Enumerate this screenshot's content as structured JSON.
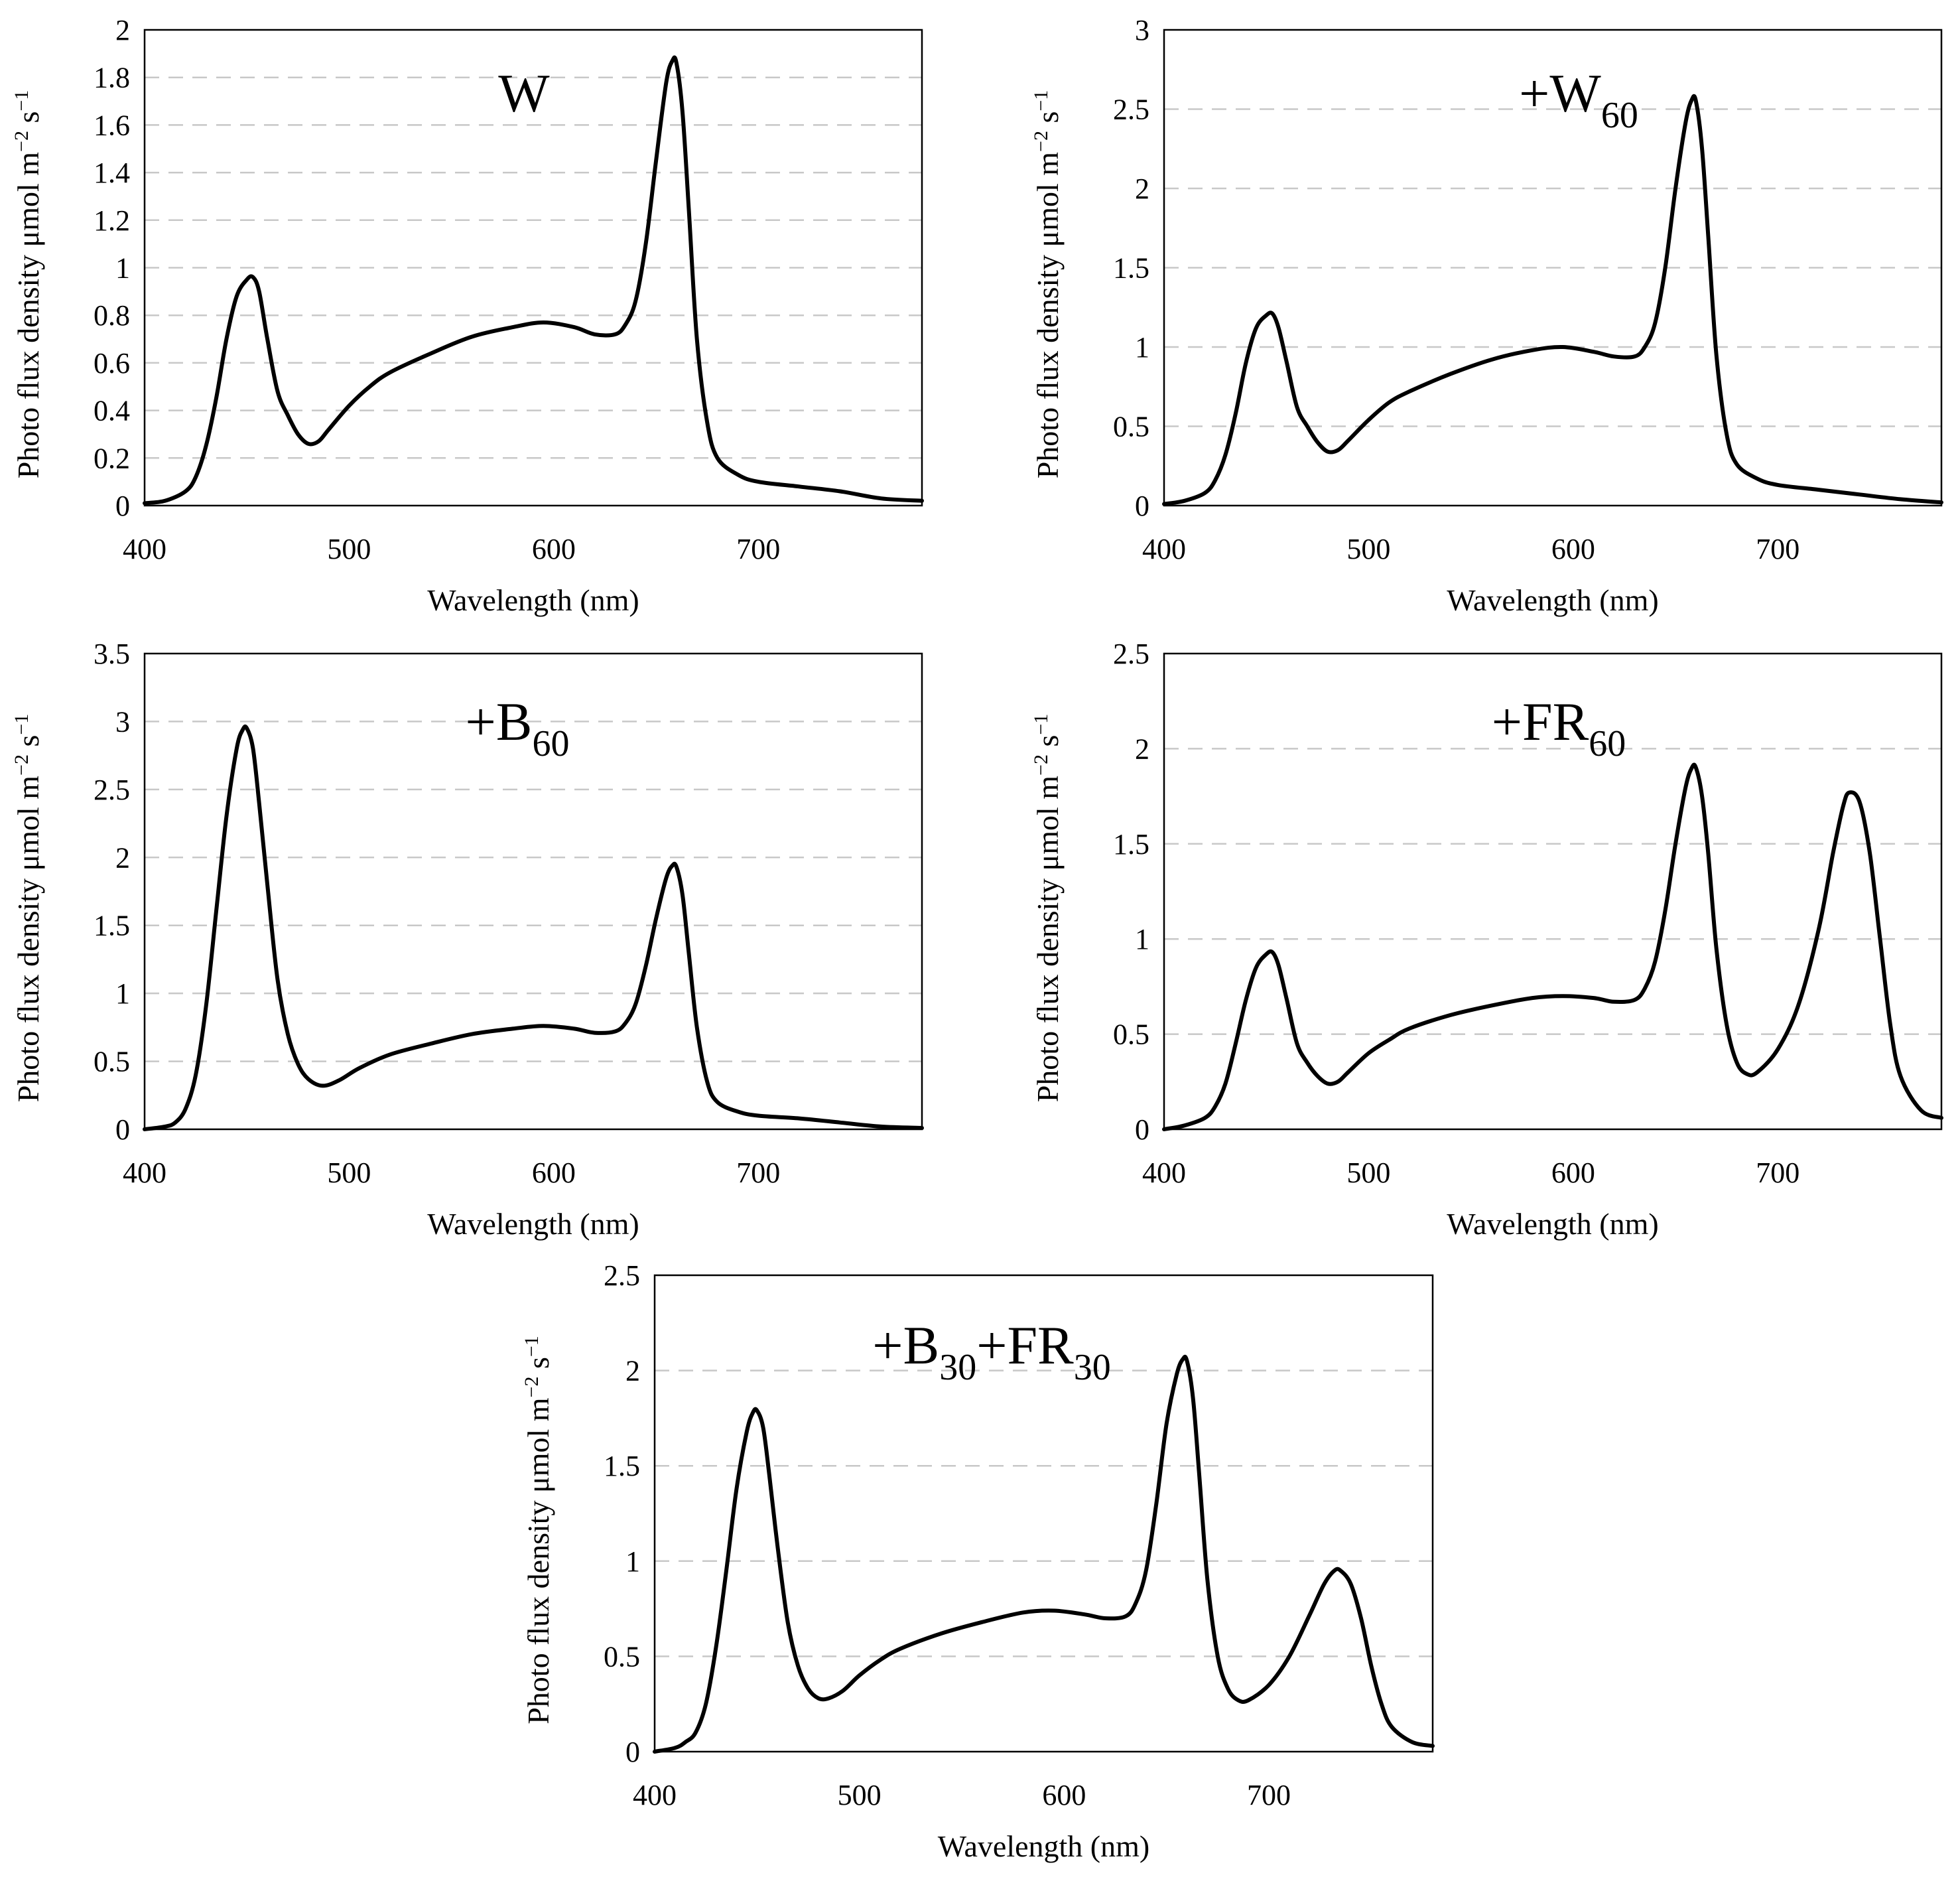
{
  "figure": {
    "xlabel": "Wavelength (nm)",
    "ylabel_base": "Photo flux density μmol m",
    "ylabel_exp1": "−2",
    "ylabel_mid": " s",
    "ylabel_exp2": "−1",
    "x_ticks": [
      "400",
      "500",
      "600",
      "700"
    ]
  },
  "chart_data": [
    {
      "type": "line",
      "title": "W",
      "title_parts": [
        {
          "text": "W",
          "sub": false
        }
      ],
      "xlabel": "Wavelength (nm)",
      "ylabel": "Photo flux density μmol m−2 s−1",
      "xlim": [
        400,
        780
      ],
      "ylim": [
        0,
        2
      ],
      "yticks": [
        0,
        0.2,
        0.4,
        0.6,
        0.8,
        1,
        1.2,
        1.4,
        1.6,
        1.8,
        2
      ],
      "ytick_labels": [
        "0",
        "0.2",
        "0.4",
        "0.6",
        "0.8",
        "1",
        "1.2",
        "1.4",
        "1.6",
        "1.8",
        "2"
      ],
      "grid": true,
      "x": [
        400,
        410,
        420,
        425,
        430,
        435,
        440,
        445,
        450,
        453,
        456,
        460,
        465,
        470,
        475,
        480,
        485,
        490,
        500,
        510,
        520,
        540,
        560,
        580,
        595,
        610,
        620,
        630,
        635,
        640,
        645,
        650,
        655,
        658,
        660,
        663,
        666,
        670,
        675,
        680,
        690,
        700,
        720,
        740,
        760,
        780
      ],
      "y": [
        0.01,
        0.02,
        0.06,
        0.12,
        0.25,
        0.45,
        0.7,
        0.88,
        0.95,
        0.96,
        0.9,
        0.7,
        0.48,
        0.38,
        0.3,
        0.26,
        0.27,
        0.32,
        0.42,
        0.5,
        0.56,
        0.64,
        0.71,
        0.75,
        0.77,
        0.75,
        0.72,
        0.72,
        0.76,
        0.86,
        1.1,
        1.45,
        1.78,
        1.87,
        1.86,
        1.65,
        1.25,
        0.7,
        0.35,
        0.2,
        0.13,
        0.1,
        0.08,
        0.06,
        0.03,
        0.02
      ]
    },
    {
      "type": "line",
      "title": "+W60",
      "title_parts": [
        {
          "text": "+W",
          "sub": false
        },
        {
          "text": "60",
          "sub": true
        }
      ],
      "xlabel": "Wavelength (nm)",
      "ylabel": "Photo flux density μmol m−2 s−1",
      "xlim": [
        400,
        780
      ],
      "ylim": [
        0,
        3
      ],
      "yticks": [
        0,
        0.5,
        1,
        1.5,
        2,
        2.5,
        3
      ],
      "ytick_labels": [
        "0",
        "0.5",
        "1",
        "1.5",
        "2",
        "2.5",
        "3"
      ],
      "grid": true,
      "x": [
        400,
        410,
        420,
        425,
        430,
        435,
        440,
        445,
        450,
        453,
        456,
        460,
        465,
        470,
        475,
        480,
        485,
        490,
        500,
        510,
        520,
        540,
        560,
        580,
        595,
        610,
        620,
        630,
        635,
        640,
        645,
        650,
        655,
        658,
        660,
        663,
        666,
        670,
        675,
        680,
        690,
        700,
        720,
        740,
        760,
        780
      ],
      "y": [
        0.01,
        0.03,
        0.08,
        0.16,
        0.32,
        0.58,
        0.9,
        1.12,
        1.2,
        1.21,
        1.12,
        0.9,
        0.62,
        0.5,
        0.4,
        0.34,
        0.35,
        0.41,
        0.54,
        0.65,
        0.72,
        0.83,
        0.92,
        0.98,
        1.0,
        0.97,
        0.94,
        0.94,
        1.0,
        1.15,
        1.5,
        2.0,
        2.42,
        2.56,
        2.55,
        2.25,
        1.7,
        0.95,
        0.45,
        0.26,
        0.17,
        0.13,
        0.1,
        0.07,
        0.04,
        0.02
      ]
    },
    {
      "type": "line",
      "title": "+B60",
      "title_parts": [
        {
          "text": "+B",
          "sub": false
        },
        {
          "text": "60",
          "sub": true
        }
      ],
      "xlabel": "Wavelength (nm)",
      "ylabel": "Photo flux density μmol m−2 s−1",
      "xlim": [
        400,
        780
      ],
      "ylim": [
        0,
        3.5
      ],
      "yticks": [
        0,
        0.5,
        1,
        1.5,
        2,
        2.5,
        3,
        3.5
      ],
      "ytick_labels": [
        "0",
        "0.5",
        "1",
        "1.5",
        "2",
        "2.5",
        "3",
        "3.5"
      ],
      "grid": true,
      "x": [
        400,
        410,
        415,
        420,
        425,
        430,
        435,
        440,
        445,
        448,
        450,
        453,
        456,
        460,
        465,
        470,
        475,
        480,
        487,
        495,
        505,
        520,
        540,
        560,
        580,
        595,
        610,
        620,
        630,
        635,
        640,
        645,
        650,
        655,
        658,
        660,
        663,
        666,
        670,
        675,
        680,
        690,
        700,
        720,
        740,
        760,
        780
      ],
      "y": [
        0.0,
        0.02,
        0.05,
        0.15,
        0.4,
        0.9,
        1.6,
        2.3,
        2.8,
        2.94,
        2.95,
        2.8,
        2.4,
        1.8,
        1.1,
        0.7,
        0.48,
        0.37,
        0.32,
        0.36,
        0.45,
        0.55,
        0.63,
        0.7,
        0.74,
        0.76,
        0.74,
        0.71,
        0.72,
        0.78,
        0.92,
        1.2,
        1.55,
        1.85,
        1.94,
        1.93,
        1.72,
        1.3,
        0.75,
        0.35,
        0.2,
        0.13,
        0.1,
        0.08,
        0.05,
        0.02,
        0.01
      ]
    },
    {
      "type": "line",
      "title": "+FR60",
      "title_parts": [
        {
          "text": "+FR",
          "sub": false
        },
        {
          "text": "60",
          "sub": true
        }
      ],
      "xlabel": "Wavelength (nm)",
      "ylabel": "Photo flux density μmol m−2 s−1",
      "xlim": [
        400,
        780
      ],
      "ylim": [
        0,
        2.5
      ],
      "yticks": [
        0,
        0.5,
        1,
        1.5,
        2,
        2.5
      ],
      "ytick_labels": [
        "0",
        "0.5",
        "1",
        "1.5",
        "2",
        "2.5"
      ],
      "grid": true,
      "x": [
        400,
        410,
        420,
        425,
        430,
        435,
        440,
        445,
        450,
        453,
        456,
        460,
        465,
        470,
        475,
        480,
        485,
        490,
        500,
        510,
        520,
        540,
        560,
        580,
        595,
        610,
        620,
        630,
        635,
        640,
        645,
        650,
        655,
        658,
        660,
        663,
        666,
        670,
        675,
        680,
        685,
        690,
        700,
        710,
        720,
        727,
        732,
        735,
        740,
        745,
        750,
        755,
        760,
        770,
        780
      ],
      "y": [
        0.0,
        0.02,
        0.06,
        0.12,
        0.24,
        0.45,
        0.68,
        0.85,
        0.92,
        0.93,
        0.86,
        0.68,
        0.45,
        0.35,
        0.28,
        0.24,
        0.25,
        0.3,
        0.4,
        0.47,
        0.53,
        0.6,
        0.65,
        0.69,
        0.7,
        0.69,
        0.67,
        0.68,
        0.74,
        0.88,
        1.15,
        1.5,
        1.8,
        1.9,
        1.9,
        1.75,
        1.45,
        0.95,
        0.55,
        0.35,
        0.29,
        0.3,
        0.42,
        0.65,
        1.05,
        1.45,
        1.7,
        1.77,
        1.72,
        1.45,
        1.0,
        0.55,
        0.28,
        0.1,
        0.06
      ]
    },
    {
      "type": "line",
      "title": "+B30+FR30",
      "title_parts": [
        {
          "text": "+B",
          "sub": false
        },
        {
          "text": "30",
          "sub": true
        },
        {
          "text": "+FR",
          "sub": false
        },
        {
          "text": "30",
          "sub": true
        }
      ],
      "xlabel": "Wavelength (nm)",
      "ylabel": "Photo flux density μmol m−2 s−1",
      "xlim": [
        400,
        780
      ],
      "ylim": [
        0,
        2.5
      ],
      "yticks": [
        0,
        0.5,
        1,
        1.5,
        2,
        2.5
      ],
      "ytick_labels": [
        "0",
        "0.5",
        "1",
        "1.5",
        "2",
        "2.5"
      ],
      "grid": true,
      "x": [
        400,
        410,
        415,
        420,
        425,
        430,
        435,
        440,
        445,
        448,
        450,
        453,
        456,
        460,
        465,
        470,
        475,
        480,
        485,
        492,
        500,
        510,
        520,
        540,
        560,
        580,
        595,
        610,
        620,
        630,
        635,
        640,
        645,
        650,
        655,
        658,
        660,
        663,
        666,
        670,
        675,
        680,
        685,
        690,
        700,
        710,
        720,
        727,
        732,
        735,
        740,
        745,
        750,
        755,
        760,
        770,
        780
      ],
      "y": [
        0.0,
        0.02,
        0.05,
        0.1,
        0.25,
        0.55,
        0.95,
        1.38,
        1.68,
        1.78,
        1.79,
        1.7,
        1.45,
        1.08,
        0.68,
        0.45,
        0.33,
        0.28,
        0.28,
        0.32,
        0.4,
        0.48,
        0.54,
        0.62,
        0.68,
        0.73,
        0.74,
        0.72,
        0.7,
        0.71,
        0.78,
        0.95,
        1.3,
        1.72,
        1.98,
        2.06,
        2.05,
        1.85,
        1.45,
        0.9,
        0.5,
        0.33,
        0.27,
        0.27,
        0.35,
        0.5,
        0.72,
        0.88,
        0.95,
        0.95,
        0.88,
        0.7,
        0.45,
        0.25,
        0.13,
        0.05,
        0.03
      ]
    }
  ]
}
